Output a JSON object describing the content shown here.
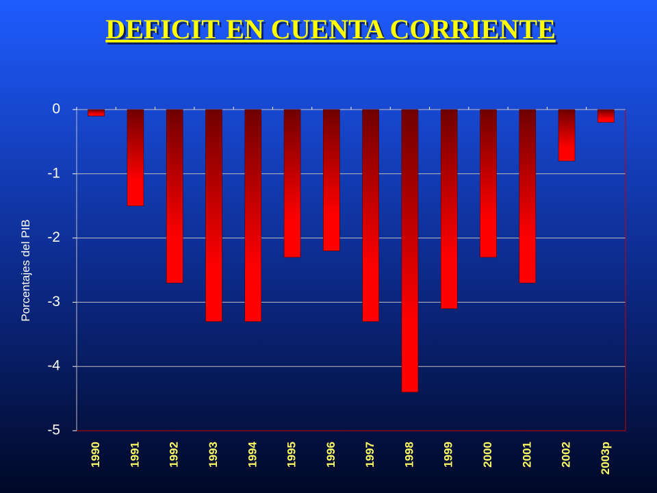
{
  "chart_data": {
    "type": "bar",
    "title": "DEFICIT EN CUENTA CORRIENTE",
    "y_label": "Porcentajes del PIB",
    "categories": [
      "1990",
      "1991",
      "1992",
      "1993",
      "1994",
      "1995",
      "1996",
      "1997",
      "1998",
      "1999",
      "2000",
      "2001",
      "2002",
      "2003p"
    ],
    "values": [
      -0.1,
      -1.5,
      -2.7,
      -3.3,
      -3.3,
      -2.3,
      -2.2,
      -3.3,
      -4.4,
      -3.1,
      -2.3,
      -2.7,
      -0.8,
      -0.2
    ],
    "color": "#ff0000",
    "ylim": [
      -5,
      0
    ],
    "yticks": [
      0,
      -1,
      -2,
      -3,
      -4,
      -5
    ],
    "grid": true
  }
}
